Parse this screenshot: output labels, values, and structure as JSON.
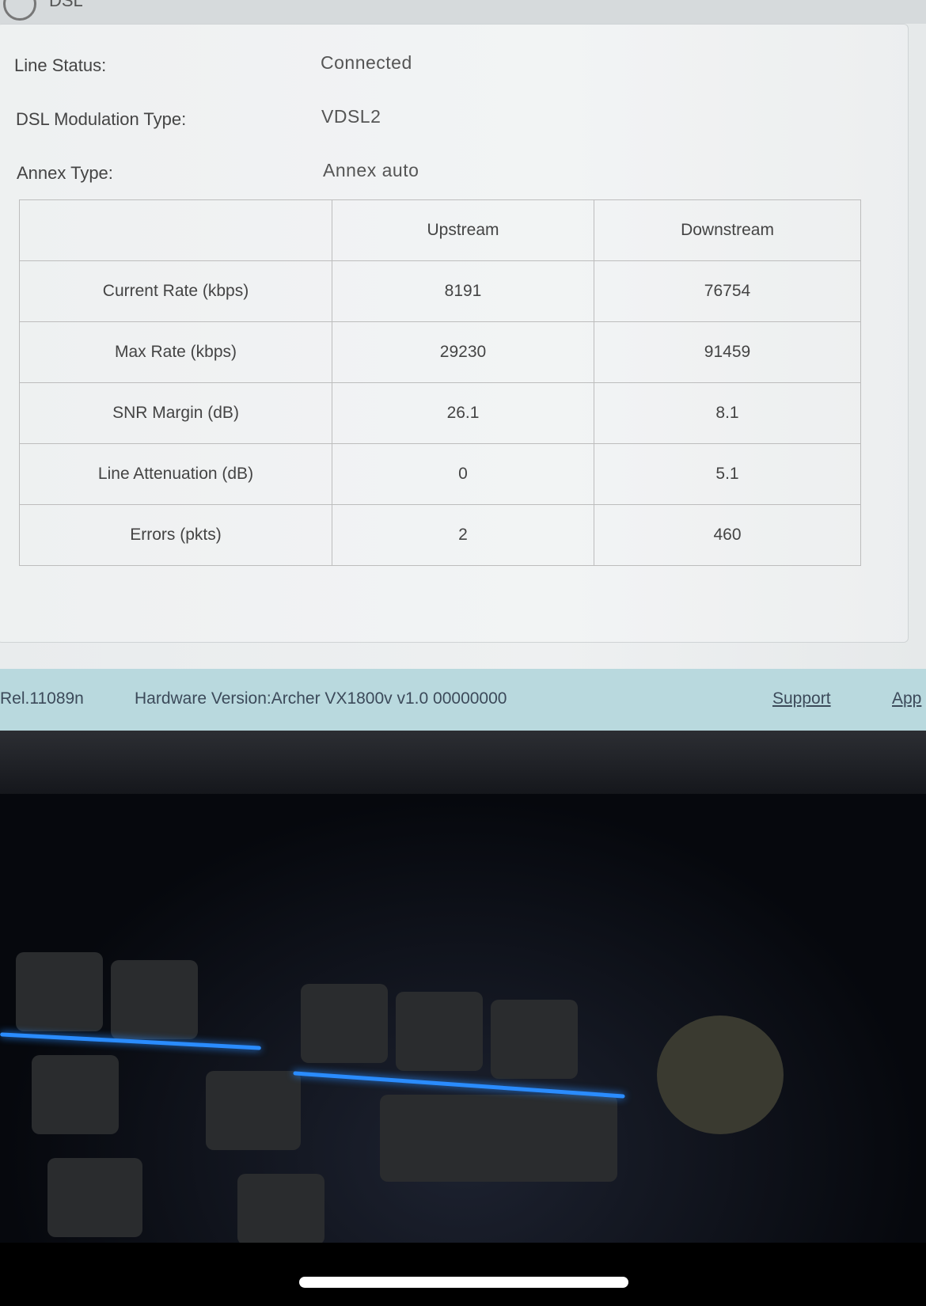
{
  "header": {
    "title": "DSL"
  },
  "status": [
    {
      "label": "Line Status:",
      "value": "Connected"
    },
    {
      "label": "DSL Modulation Type:",
      "value": "VDSL2"
    },
    {
      "label": "Annex Type:",
      "value": "Annex auto"
    }
  ],
  "table": {
    "headers": [
      "",
      "Upstream",
      "Downstream"
    ],
    "rows": [
      {
        "label": "Current Rate (kbps)",
        "up": "8191",
        "down": "76754"
      },
      {
        "label": "Max Rate (kbps)",
        "up": "29230",
        "down": "91459"
      },
      {
        "label": "SNR Margin (dB)",
        "up": "26.1",
        "down": "8.1"
      },
      {
        "label": "Line Attenuation (dB)",
        "up": "0",
        "down": "5.1"
      },
      {
        "label": "Errors (pkts)",
        "up": "2",
        "down": "460"
      }
    ]
  },
  "footer": {
    "firmware": "Rel.11089n",
    "hardware": "Hardware Version:Archer VX1800v v1.0 00000000",
    "support": "Support",
    "app": "App"
  }
}
